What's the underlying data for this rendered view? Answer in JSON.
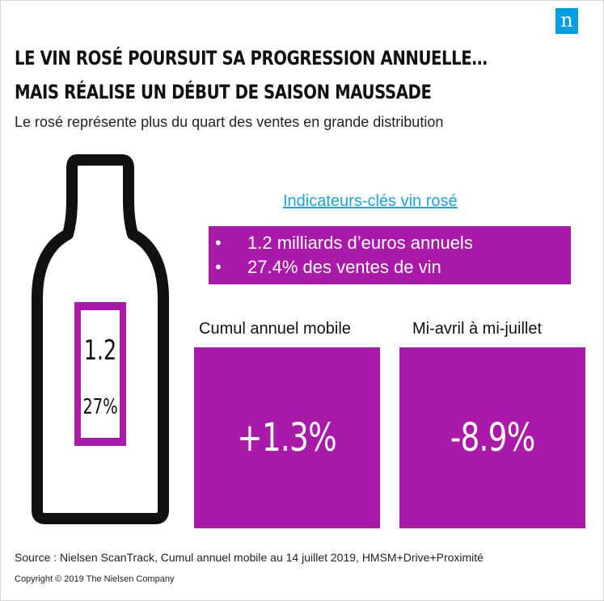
{
  "header": {
    "logo_text": "n",
    "title_line1": "LE VIN ROSÉ POURSUIT SA PROGRESSION ANNUELLE…",
    "title_line2": "MAIS RÉALISE UN DÉBUT DE SAISON MAUSSADE",
    "subtitle": "Le rosé représente plus du quart des ventes en grande distribution"
  },
  "bottle": {
    "label_value1": "1.2",
    "label_value2": "27%"
  },
  "indicators": {
    "title": "Indicateurs-clés vin rosé",
    "items": [
      "1.2 milliards d’euros annuels",
      "27.4% des ventes de vin"
    ],
    "bullet": "•"
  },
  "cards": [
    {
      "label": "Cumul annuel mobile",
      "value": "+1.3%"
    },
    {
      "label": "Mi-avril à mi-juillet",
      "value": "-8.9%"
    }
  ],
  "footer": {
    "source": "Source : Nielsen ScanTrack, Cumul annuel mobile au 14 juillet 2019, HMSM+Drive+Proximité",
    "copyright": "Copyright © 2019 The Nielsen Company"
  },
  "colors": {
    "accent": "#a91aa8",
    "link": "#1aa3e0",
    "logo_bg": "#009fe3"
  }
}
